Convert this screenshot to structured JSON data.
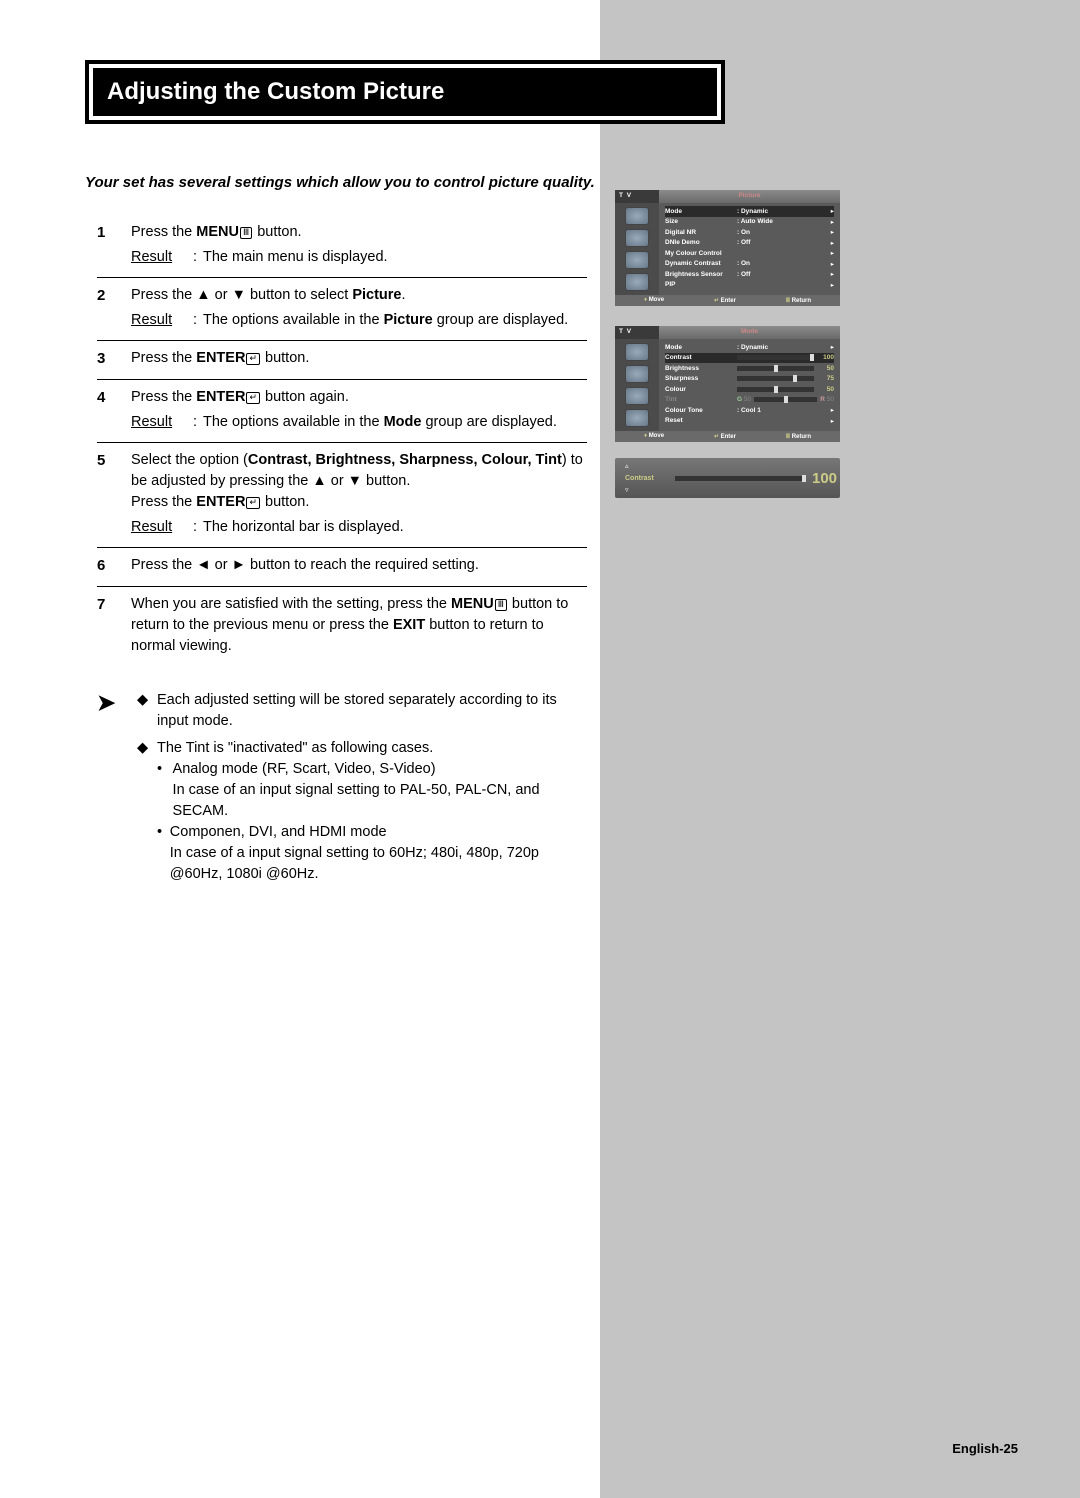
{
  "title": "Adjusting the Custom Picture",
  "intro": "Your set has several settings which allow you to control picture quality.",
  "labels": {
    "result": "Result",
    "menu": "MENU",
    "enter": "ENTER",
    "picture": "Picture",
    "mode": "Mode",
    "exit": "EXIT"
  },
  "steps": {
    "s1": {
      "num": "1",
      "text_a": "Press the ",
      "text_b": " button.",
      "result": "The main menu is displayed."
    },
    "s2": {
      "num": "2",
      "text_a": "Press the ▲ or ▼ button to select ",
      "text_b": ".",
      "result_a": "The options available in the ",
      "result_b": " group are displayed."
    },
    "s3": {
      "num": "3",
      "text_a": "Press the ",
      "text_b": " button."
    },
    "s4": {
      "num": "4",
      "text_a": "Press the ",
      "text_b": " button again.",
      "result_a": "The options available in the ",
      "result_b": " group are displayed."
    },
    "s5": {
      "num": "5",
      "l1_a": "Select the option (",
      "l1_opts": "Contrast, Brightness, Sharpness, Colour, Tint",
      "l1_b": ") to be adjusted by pressing the ▲ or ▼ button.",
      "l2_a": "Press the ",
      "l2_b": " button.",
      "result": "The horizontal bar is displayed."
    },
    "s6": {
      "num": "6",
      "text": "Press the ◄ or ► button to reach the required setting."
    },
    "s7": {
      "num": "7",
      "t1": "When you are satisfied with the setting, press the ",
      "t2": " button to return to the previous menu or press the ",
      "t3": " button to return to normal viewing."
    }
  },
  "notes": {
    "n1": "Each adjusted setting will be stored separately according to its input mode.",
    "n2_head": "The Tint is \"inactivated\" as following cases.",
    "n2_b1_a": "Analog mode (RF, Scart, Video, S-Video)",
    "n2_b1_b": "In case of an input signal setting to PAL-50, PAL-CN, and SECAM.",
    "n2_b2_a": "Componen, DVI, and HDMI mode",
    "n2_b2_b": "In case of a input signal setting to 60Hz; 480i, 480p, 720p @60Hz, 1080i @60Hz."
  },
  "osd": {
    "tv": "T V",
    "picture_title": "Picture",
    "mode_title": "Mode",
    "foot_move": "Move",
    "foot_enter": "Enter",
    "foot_return": "Return",
    "menu1": {
      "mode": {
        "k": "Mode",
        "v": ": Dynamic"
      },
      "size": {
        "k": "Size",
        "v": ": Auto Wide"
      },
      "dnr": {
        "k": "Digital NR",
        "v": ": On"
      },
      "demo": {
        "k": "DNIe Demo",
        "v": ": Off"
      },
      "mcc": {
        "k": "My Colour Control",
        "v": ""
      },
      "dc": {
        "k": "Dynamic Contrast",
        "v": ": On"
      },
      "bs": {
        "k": "Brightness Sensor",
        "v": ": Off"
      },
      "pip": {
        "k": "PIP",
        "v": ""
      }
    },
    "menu2": {
      "mode": {
        "k": "Mode",
        "v": ": Dynamic"
      },
      "contrast": {
        "k": "Contrast",
        "v": "100"
      },
      "brightness": {
        "k": "Brightness",
        "v": "50"
      },
      "sharpness": {
        "k": "Sharpness",
        "v": "75"
      },
      "colour": {
        "k": "Colour",
        "v": "50"
      },
      "tint": {
        "k": "Tint",
        "g": "G",
        "gv": "50",
        "r": "R",
        "rv": "50"
      },
      "ct": {
        "k": "Colour Tone",
        "v": ": Cool 1"
      },
      "reset": {
        "k": "Reset",
        "v": ""
      }
    },
    "bar": {
      "label": "Contrast",
      "value": "100"
    }
  },
  "page_number": "English-25"
}
